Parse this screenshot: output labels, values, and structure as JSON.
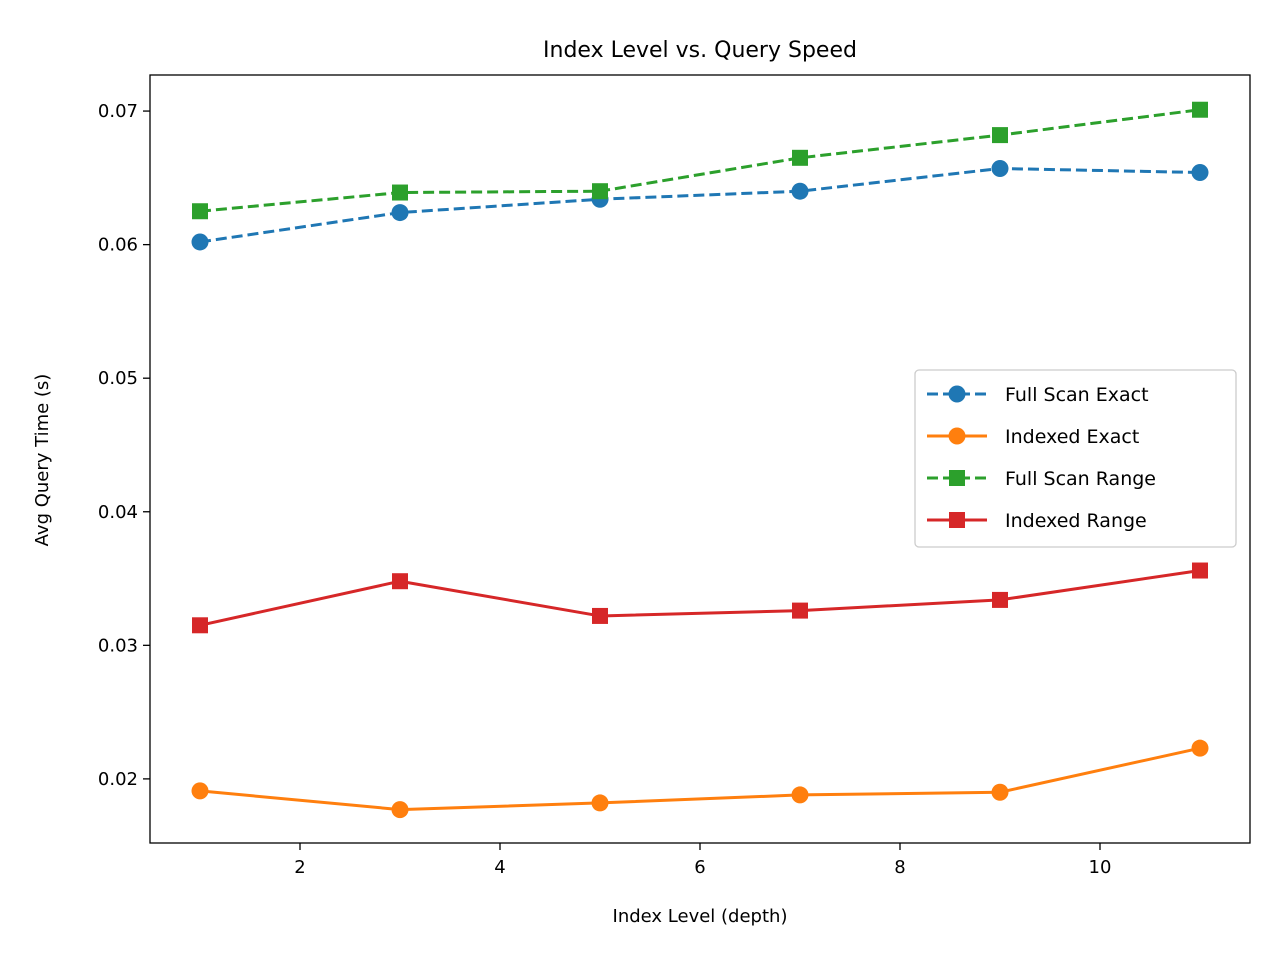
{
  "chart_data": {
    "type": "line",
    "title": "Index Level vs. Query Speed",
    "xlabel": "Index Level (depth)",
    "ylabel": "Avg Query Time (s)",
    "xlim": [
      0.5,
      11.5
    ],
    "ylim": [
      0.0152,
      0.0727
    ],
    "xticks": [
      2,
      4,
      6,
      8,
      10
    ],
    "xtick_labels": [
      "2",
      "4",
      "6",
      "8",
      "10"
    ],
    "yticks": [
      0.02,
      0.03,
      0.04,
      0.05,
      0.06,
      0.07
    ],
    "ytick_labels": [
      "0.02",
      "0.03",
      "0.04",
      "0.05",
      "0.06",
      "0.07"
    ],
    "grid": false,
    "legend_position": "center-right",
    "x": [
      1,
      3,
      5,
      7,
      9,
      11
    ],
    "series": [
      {
        "name": "Full Scan Exact",
        "values": [
          0.0602,
          0.0624,
          0.0634,
          0.064,
          0.0657,
          0.0654
        ],
        "color": "#1f77b4",
        "line_style": "dashed",
        "marker": "circle"
      },
      {
        "name": "Indexed Exact",
        "values": [
          0.0191,
          0.0177,
          0.0182,
          0.0188,
          0.019,
          0.0223
        ],
        "color": "#ff7f0e",
        "line_style": "solid",
        "marker": "circle"
      },
      {
        "name": "Full Scan Range",
        "values": [
          0.0625,
          0.0639,
          0.064,
          0.0665,
          0.0682,
          0.0701
        ],
        "color": "#2ca02c",
        "line_style": "dashed",
        "marker": "square"
      },
      {
        "name": "Indexed Range",
        "values": [
          0.0315,
          0.0348,
          0.0322,
          0.0326,
          0.0334,
          0.0356
        ],
        "color": "#d62728",
        "line_style": "solid",
        "marker": "square"
      }
    ]
  }
}
